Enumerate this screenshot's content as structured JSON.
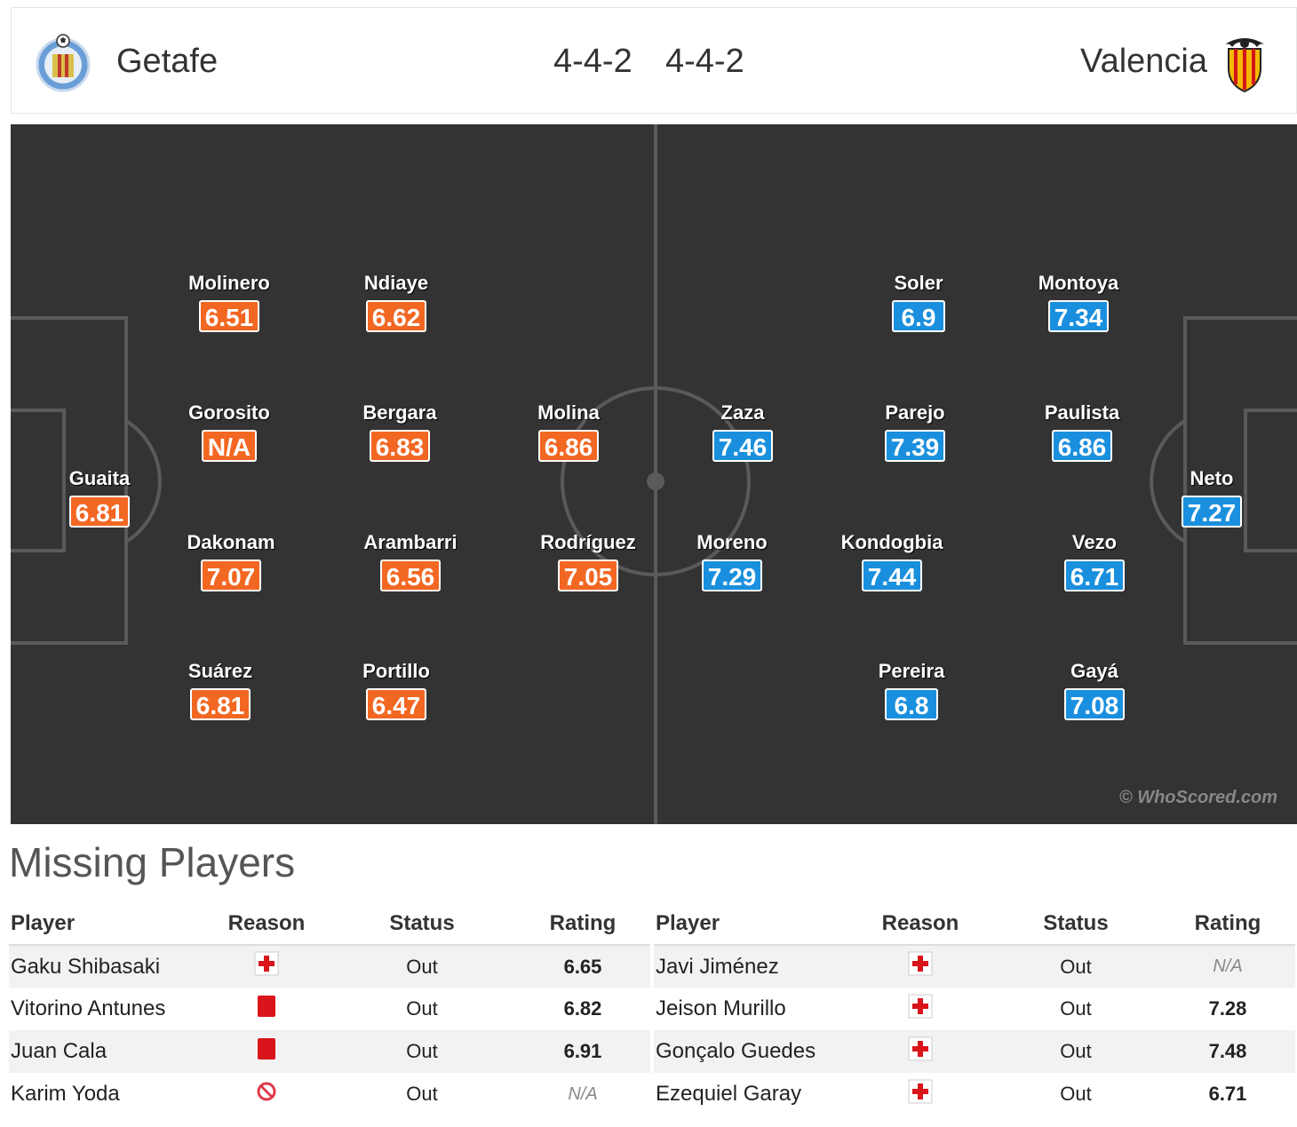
{
  "header": {
    "home_team": "Getafe",
    "away_team": "Valencia",
    "home_formation": "4-4-2",
    "away_formation": "4-4-2",
    "home_crest_icon": "getafe-crest-icon",
    "away_crest_icon": "valencia-bat-crest-icon"
  },
  "colors": {
    "home_rating": "#f26722",
    "away_rating": "#1a8fde",
    "pitch": "#333333"
  },
  "pitch": {
    "watermark": "© WhoScored.com",
    "home_players": [
      {
        "name": "Guaita",
        "rating": "6.81"
      },
      {
        "name": "Molinero",
        "rating": "6.51"
      },
      {
        "name": "Gorosito",
        "rating": "N/A"
      },
      {
        "name": "Dakonam",
        "rating": "7.07"
      },
      {
        "name": "Suárez",
        "rating": "6.81"
      },
      {
        "name": "Ndiaye",
        "rating": "6.62"
      },
      {
        "name": "Bergara",
        "rating": "6.83"
      },
      {
        "name": "Arambarri",
        "rating": "6.56"
      },
      {
        "name": "Portillo",
        "rating": "6.47"
      },
      {
        "name": "Molina",
        "rating": "6.86"
      },
      {
        "name": "Rodríguez",
        "rating": "7.05"
      }
    ],
    "away_players": [
      {
        "name": "Neto",
        "rating": "7.27"
      },
      {
        "name": "Montoya",
        "rating": "7.34"
      },
      {
        "name": "Paulista",
        "rating": "6.86"
      },
      {
        "name": "Vezo",
        "rating": "6.71"
      },
      {
        "name": "Gayá",
        "rating": "7.08"
      },
      {
        "name": "Soler",
        "rating": "6.9"
      },
      {
        "name": "Parejo",
        "rating": "7.39"
      },
      {
        "name": "Kondogbia",
        "rating": "7.44"
      },
      {
        "name": "Pereira",
        "rating": "6.8"
      },
      {
        "name": "Zaza",
        "rating": "7.46"
      },
      {
        "name": "Moreno",
        "rating": "7.29"
      }
    ]
  },
  "missing": {
    "title": "Missing Players",
    "columns": [
      "Player",
      "Reason",
      "Status",
      "Rating"
    ],
    "home": [
      {
        "player": "Gaku Shibasaki",
        "reason_icon": "injury-cross-icon",
        "status": "Out",
        "rating": "6.65"
      },
      {
        "player": "Vitorino Antunes",
        "reason_icon": "red-card-icon",
        "status": "Out",
        "rating": "6.82"
      },
      {
        "player": "Juan Cala",
        "reason_icon": "red-card-icon",
        "status": "Out",
        "rating": "6.91"
      },
      {
        "player": "Karim Yoda",
        "reason_icon": "suspension-icon",
        "status": "Out",
        "rating": "N/A"
      }
    ],
    "away": [
      {
        "player": "Javi Jiménez",
        "reason_icon": "injury-cross-icon",
        "status": "Out",
        "rating": "N/A"
      },
      {
        "player": "Jeison Murillo",
        "reason_icon": "injury-cross-icon",
        "status": "Out",
        "rating": "7.28"
      },
      {
        "player": "Gonçalo Guedes",
        "reason_icon": "injury-cross-icon",
        "status": "Out",
        "rating": "7.48"
      },
      {
        "player": "Ezequiel Garay",
        "reason_icon": "injury-cross-icon",
        "status": "Out",
        "rating": "6.71"
      }
    ]
  }
}
